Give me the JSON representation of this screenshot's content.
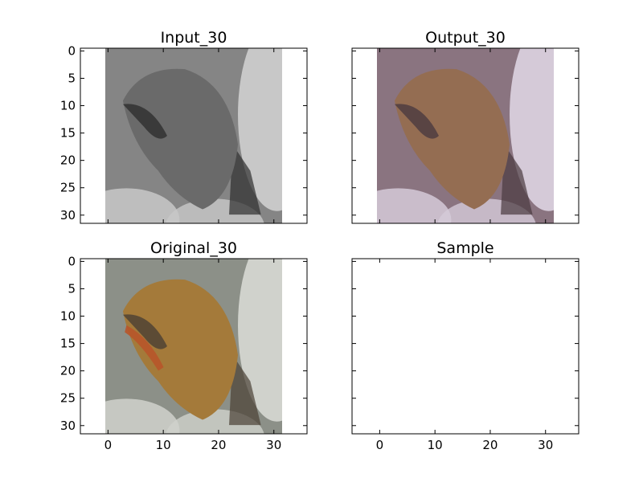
{
  "figure": {
    "background": "#ffffff"
  },
  "chart_data": [
    {
      "type": "image",
      "title": "Input_30",
      "xlim": [
        -5,
        36
      ],
      "ylim": [
        31.5,
        -0.5
      ],
      "yticks": [
        0,
        5,
        10,
        15,
        20,
        25,
        30
      ],
      "xticks": [],
      "show_xticklabels": false,
      "show_yticklabels": true,
      "image_extent": [
        -0.5,
        31.5,
        31.5,
        -0.5
      ],
      "image_content": "grayscale photo of a frog on rocks",
      "colors": {
        "background": "#858585",
        "subject": "#6a6a6a",
        "rock": "#c8c8c8",
        "shadow": "#2e2e2e"
      }
    },
    {
      "type": "image",
      "title": "Output_30",
      "xlim": [
        -5,
        36
      ],
      "ylim": [
        31.5,
        -0.5
      ],
      "yticks": [
        0,
        5,
        10,
        15,
        20,
        25,
        30
      ],
      "xticks": [],
      "show_xticklabels": false,
      "show_yticklabels": false,
      "image_extent": [
        -0.5,
        31.5,
        31.5,
        -0.5
      ],
      "image_content": "colorized photo of a frog on rocks, purple-brown tint",
      "colors": {
        "background": "#8a7480",
        "subject": "#946d52",
        "rock": "#d5cad8",
        "shadow": "#4a3a40"
      }
    },
    {
      "type": "image",
      "title": "Original_30",
      "xlim": [
        -5,
        36
      ],
      "ylim": [
        31.5,
        -0.5
      ],
      "yticks": [
        0,
        5,
        10,
        15,
        20,
        25,
        30
      ],
      "xticks": [
        0,
        10,
        20,
        30
      ],
      "show_xticklabels": true,
      "show_yticklabels": true,
      "image_extent": [
        -0.5,
        31.5,
        31.5,
        -0.5
      ],
      "image_content": "color photo of a brown frog on grey rocks",
      "colors": {
        "background": "#8c9088",
        "subject": "#a47a3a",
        "rock": "#d0d2cc",
        "shadow": "#4a4034",
        "accent": "#b8552a"
      }
    },
    {
      "type": "image",
      "title": "Sample",
      "xlim": [
        -5,
        36
      ],
      "ylim": [
        31.5,
        -0.5
      ],
      "yticks": [
        0,
        5,
        10,
        15,
        20,
        25,
        30
      ],
      "xticks": [
        0,
        10,
        20,
        30
      ],
      "show_xticklabels": true,
      "show_yticklabels": false,
      "image_extent": null,
      "image_content": "empty panel",
      "colors": {}
    }
  ]
}
